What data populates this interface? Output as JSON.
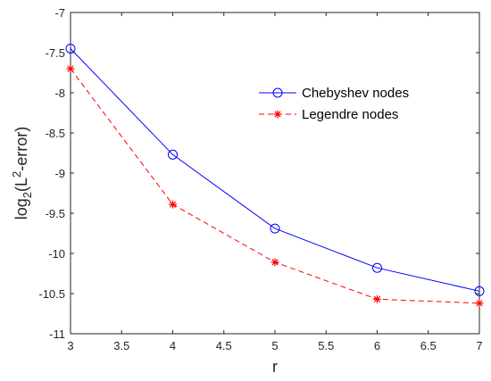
{
  "chart_data": {
    "type": "line",
    "xlabel": "r",
    "ylabel": {
      "prefix": "log",
      "subscript": "2",
      "open": "(L",
      "superscript": "2",
      "rest": "-error)"
    },
    "xlim": [
      3,
      7
    ],
    "ylim": [
      -11,
      -7
    ],
    "xticks": [
      3,
      3.5,
      4,
      4.5,
      5,
      5.5,
      6,
      6.5,
      7
    ],
    "xtick_labels": [
      "3",
      "3.5",
      "4",
      "4.5",
      "5",
      "5.5",
      "6",
      "6.5",
      "7"
    ],
    "yticks": [
      -7,
      -7.5,
      -8,
      -8.5,
      -9,
      -9.5,
      -10,
      -10.5,
      -11
    ],
    "ytick_labels": [
      "-7",
      "-7.5",
      "-8",
      "-8.5",
      "-9",
      "-9.5",
      "-10",
      "-10.5",
      "-11"
    ],
    "grid": false,
    "legend_position": "upper-right",
    "x": [
      3,
      4,
      5,
      6,
      7
    ],
    "series": [
      {
        "name": "Chebyshev nodes",
        "values": [
          -7.45,
          -8.77,
          -9.69,
          -10.18,
          -10.47
        ],
        "color": "#0000ff",
        "line_style": "solid",
        "marker": "circle"
      },
      {
        "name": "Legendre nodes",
        "values": [
          -7.7,
          -9.39,
          -10.11,
          -10.57,
          -10.62
        ],
        "color": "#ff0000",
        "line_style": "dashed",
        "marker": "star"
      }
    ]
  }
}
